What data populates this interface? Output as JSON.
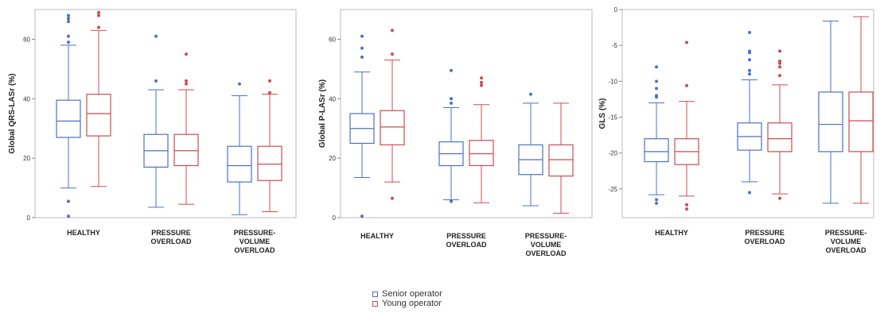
{
  "colors": {
    "senior": "#4a72c6",
    "young": "#cf4b52",
    "axis": "#bbbbbb"
  },
  "legend": {
    "senior_label": "Senior operator",
    "young_label": "Young operator"
  },
  "chart_data": [
    {
      "type": "box",
      "ylabel": "Global QRS-LASr (%)",
      "ylim": [
        0,
        70
      ],
      "yticks": [
        0,
        20,
        40,
        60
      ],
      "categories": [
        "HEALTHY",
        "PRESSURE\nOVERLOAD",
        "PRESSURE-\nVOLUME\nOVERLOAD"
      ],
      "series": [
        {
          "name": "Senior operator",
          "boxes": [
            {
              "min": 10,
              "q1": 27,
              "median": 32.5,
              "q3": 39.5,
              "max": 58,
              "outliers": [
                0.5,
                5.5,
                59,
                61,
                66,
                67,
                68
              ]
            },
            {
              "min": 3.5,
              "q1": 17,
              "median": 22.5,
              "q3": 28,
              "max": 43,
              "outliers": [
                46,
                61
              ]
            },
            {
              "min": 1,
              "q1": 12,
              "median": 17.5,
              "q3": 24,
              "max": 41,
              "outliers": [
                45
              ]
            }
          ]
        },
        {
          "name": "Young operator",
          "boxes": [
            {
              "min": 10.5,
              "q1": 27.5,
              "median": 35,
              "q3": 41.5,
              "max": 63,
              "outliers": [
                64,
                68,
                69
              ]
            },
            {
              "min": 4.5,
              "q1": 17.5,
              "median": 22.5,
              "q3": 28,
              "max": 43,
              "outliers": [
                45,
                46,
                55
              ]
            },
            {
              "min": 2,
              "q1": 12.5,
              "median": 18,
              "q3": 24,
              "max": 41.5,
              "outliers": [
                42,
                46
              ]
            }
          ]
        }
      ]
    },
    {
      "type": "box",
      "ylabel": "Global P-LASr (%)",
      "ylim": [
        0,
        70
      ],
      "yticks": [
        0,
        20,
        40,
        60
      ],
      "categories": [
        "HEALTHY",
        "PRESSURE\nOVERLOAD",
        "PRESSURE-\nVOLUME\nOVERLOAD"
      ],
      "series": [
        {
          "name": "Senior operator",
          "boxes": [
            {
              "min": 13.5,
              "q1": 25,
              "median": 30,
              "q3": 35,
              "max": 49,
              "outliers": [
                0.5,
                54,
                57,
                61
              ]
            },
            {
              "min": 6,
              "q1": 17.5,
              "median": 21.5,
              "q3": 25.5,
              "max": 37,
              "outliers": [
                5.5,
                38.5,
                40,
                49.5
              ]
            },
            {
              "min": 4,
              "q1": 14.5,
              "median": 19.5,
              "q3": 24.5,
              "max": 38.5,
              "outliers": [
                41.5
              ]
            }
          ]
        },
        {
          "name": "Young operator",
          "boxes": [
            {
              "min": 12,
              "q1": 24.5,
              "median": 30.5,
              "q3": 36,
              "max": 53,
              "outliers": [
                6.5,
                55,
                63
              ]
            },
            {
              "min": 5,
              "q1": 17.5,
              "median": 21.5,
              "q3": 26,
              "max": 38,
              "outliers": [
                44.5,
                45.5,
                47
              ]
            },
            {
              "min": 1.5,
              "q1": 14,
              "median": 19.5,
              "q3": 24.5,
              "max": 38.5,
              "outliers": []
            }
          ]
        }
      ]
    },
    {
      "type": "box",
      "ylabel": "GLS (%)",
      "ylim": [
        -29,
        0
      ],
      "yticks": [
        0,
        -5,
        -10,
        -15,
        -20,
        -25
      ],
      "categories": [
        "HEALTHY",
        "PRESSURE\nOVERLOAD",
        "PRESSURE-\nVOLUME\nOVERLOAD"
      ],
      "series": [
        {
          "name": "Senior operator",
          "boxes": [
            {
              "min": -25.8,
              "q1": -21.2,
              "median": -19.8,
              "q3": -18,
              "max": -13,
              "outliers": [
                -26.5,
                -27,
                -12.2,
                -12,
                -11,
                -10,
                -8
              ]
            },
            {
              "min": -24,
              "q1": -19.6,
              "median": -17.7,
              "q3": -15.8,
              "max": -9.8,
              "outliers": [
                -25.5,
                -9,
                -8.5,
                -7,
                -6,
                -5.8,
                -3.2
              ]
            },
            {
              "min": -27,
              "q1": -19.8,
              "median": -16,
              "q3": -11.5,
              "max": -1.6,
              "outliers": []
            }
          ]
        },
        {
          "name": "Young operator",
          "boxes": [
            {
              "min": -26,
              "q1": -21.6,
              "median": -19.8,
              "q3": -18,
              "max": -12.8,
              "outliers": [
                -27.2,
                -27.8,
                -10.6,
                -4.6
              ]
            },
            {
              "min": -25.7,
              "q1": -19.8,
              "median": -18,
              "q3": -15.8,
              "max": -10.5,
              "outliers": [
                -26.3,
                -9.2,
                -8,
                -7.5,
                -7.2,
                -5.8
              ]
            },
            {
              "min": -27,
              "q1": -19.8,
              "median": -15.5,
              "q3": -11.5,
              "max": -1.0,
              "outliers": []
            }
          ]
        }
      ]
    }
  ]
}
